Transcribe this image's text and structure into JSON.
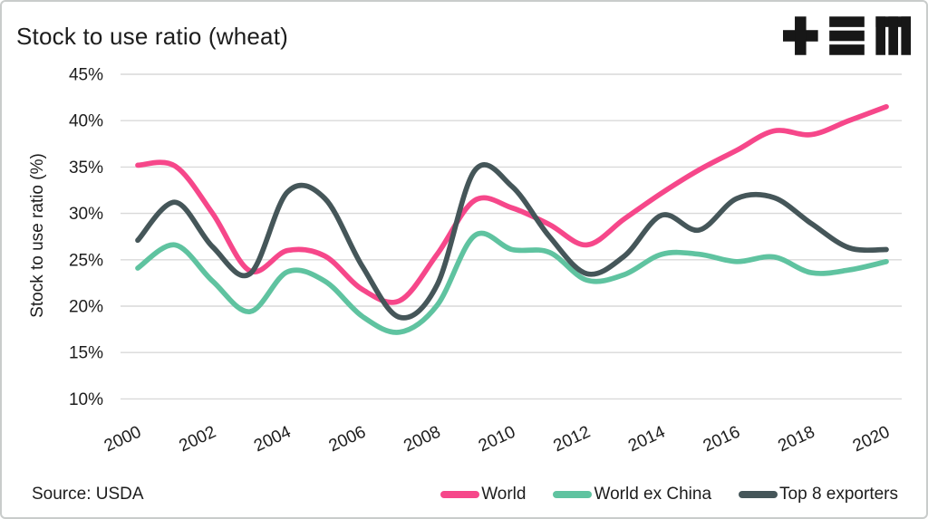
{
  "header": {
    "title": "Stock to use ratio (wheat)",
    "logo": "tem-logo"
  },
  "chart_data": {
    "type": "line",
    "x": [
      2000,
      2001,
      2002,
      2003,
      2004,
      2005,
      2006,
      2007,
      2008,
      2009,
      2010,
      2011,
      2012,
      2013,
      2014,
      2015,
      2016,
      2017,
      2018,
      2019,
      2020
    ],
    "series": [
      {
        "name": "World",
        "color": "#f6478a",
        "values": [
          35.2,
          35.1,
          30.0,
          23.8,
          26.0,
          25.4,
          21.8,
          20.6,
          25.6,
          31.4,
          30.6,
          28.8,
          26.6,
          29.4,
          32.2,
          34.7,
          36.8,
          38.9,
          38.5,
          40.0,
          41.5
        ]
      },
      {
        "name": "World ex China",
        "color": "#5fc3a0",
        "values": [
          24.1,
          26.6,
          22.7,
          19.4,
          23.7,
          22.7,
          18.9,
          17.2,
          20.1,
          27.6,
          26.1,
          25.8,
          22.8,
          23.4,
          25.6,
          25.6,
          24.8,
          25.3,
          23.6,
          23.9,
          24.8
        ]
      },
      {
        "name": "Top 8 exporters",
        "color": "#455659",
        "values": [
          27.1,
          31.2,
          26.4,
          23.5,
          32.3,
          31.6,
          24.3,
          18.8,
          22.3,
          34.6,
          32.9,
          27.5,
          23.5,
          25.4,
          29.8,
          28.2,
          31.6,
          31.7,
          28.9,
          26.3,
          26.1
        ]
      }
    ],
    "title": "Stock to use ratio (wheat)",
    "xlabel": "",
    "ylabel": "Stock to use ratio (%)",
    "ylim": [
      10,
      45
    ],
    "yticks": [
      45,
      40,
      35,
      30,
      25,
      20,
      15,
      10
    ],
    "ytick_suffix": "%",
    "xticks": [
      2000,
      2002,
      2004,
      2006,
      2008,
      2010,
      2012,
      2014,
      2016,
      2018,
      2020
    ],
    "grid": "horizontal",
    "legend_position": "bottom"
  },
  "footer": {
    "source": "Source: USDA"
  },
  "colors": {
    "grid": "#d9d9d9",
    "text": "#1d1d1d",
    "border": "#c9cccb",
    "logo": "#171717",
    "background": "#ffffff"
  }
}
